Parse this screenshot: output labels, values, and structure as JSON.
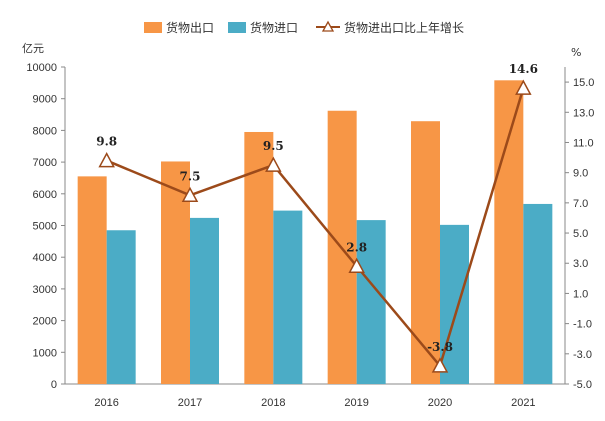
{
  "chart_data": {
    "type": "bar+line",
    "categories": [
      "2016",
      "2017",
      "2018",
      "2019",
      "2020",
      "2021"
    ],
    "series": [
      {
        "name": "货物出口",
        "kind": "bar",
        "axis": "left",
        "color": "#F79646",
        "values": [
          6550,
          7020,
          7950,
          8620,
          8290,
          9580
        ]
      },
      {
        "name": "货物进口",
        "kind": "bar",
        "axis": "left",
        "color": "#4BACC6",
        "values": [
          4850,
          5240,
          5470,
          5170,
          5020,
          5680
        ]
      },
      {
        "name": "货物进出口比上年增长",
        "kind": "line",
        "axis": "right",
        "color": "#9C4A1A",
        "values": [
          9.8,
          7.5,
          9.5,
          2.8,
          -3.8,
          14.6
        ],
        "labels": [
          "9.8",
          "7.5",
          "9.5",
          "2.8",
          "-3.8",
          "14.6"
        ]
      }
    ],
    "left_axis": {
      "unit": "亿元",
      "min": 0,
      "max": 10000,
      "step": 1000,
      "ticks": [
        "0",
        "1000",
        "2000",
        "3000",
        "4000",
        "5000",
        "6000",
        "7000",
        "8000",
        "9000",
        "10000"
      ]
    },
    "right_axis": {
      "unit": "%",
      "min": -5.0,
      "max": 16.0,
      "step": 2.0,
      "ticks": [
        "-5.0",
        "-3.0",
        "-1.0",
        "1.0",
        "3.0",
        "5.0",
        "7.0",
        "9.0",
        "11.0",
        "13.0",
        "15.0"
      ]
    },
    "legend_position": "top-center"
  }
}
